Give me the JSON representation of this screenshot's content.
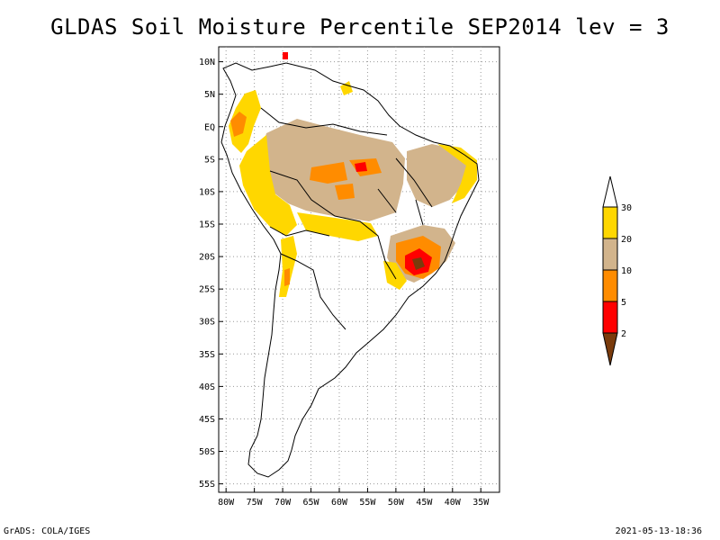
{
  "title": "GLDAS Soil Moisture Percentile SEP2014 lev = 3",
  "footer_left": "GrADS: COLA/IGES",
  "footer_right": "2021-05-13-18:36",
  "map": {
    "lat_ticks": [
      "10N",
      "5N",
      "EQ",
      "5S",
      "10S",
      "15S",
      "20S",
      "25S",
      "30S",
      "35S",
      "40S",
      "45S",
      "50S",
      "55S"
    ],
    "lon_ticks": [
      "80W",
      "75W",
      "70W",
      "65W",
      "60W",
      "55W",
      "50W",
      "45W",
      "40W",
      "35W"
    ],
    "lat_values": [
      10,
      5,
      0,
      -5,
      -10,
      -15,
      -20,
      -25,
      -30,
      -35,
      -40,
      -45,
      -50,
      -55
    ],
    "lon_values": [
      -80,
      -75,
      -70,
      -65,
      -60,
      -55,
      -50,
      -45,
      -40,
      -35
    ]
  },
  "legend": {
    "labels": [
      "2",
      "5",
      "10",
      "20",
      "30"
    ],
    "colors": {
      "below_2": "#7a3b0c",
      "2_5": "#ff0000",
      "5_10": "#ff8c00",
      "10_20": "#d2b48c",
      "20_30": "#ffd700",
      "above_30": "#ffffff"
    }
  }
}
